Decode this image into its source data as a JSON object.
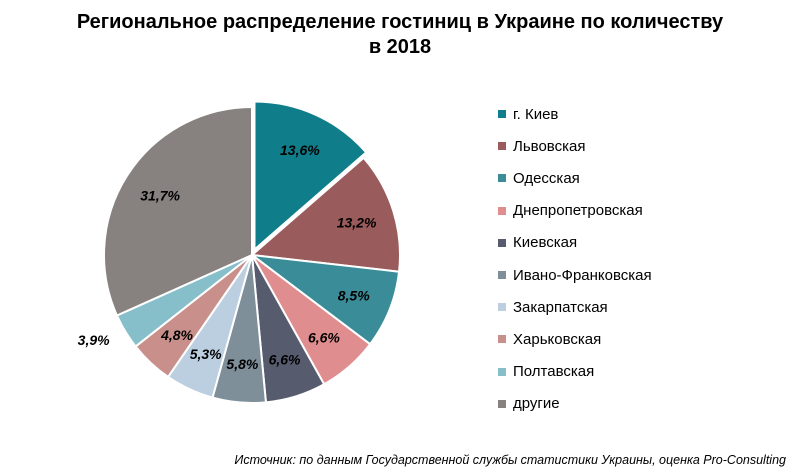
{
  "title_line1": "Региональное распределение гостиниц в Украине по количеству",
  "title_line2": "в 2018",
  "source": "Источник: по данным Государственной службы статистики Украины, оценка Pro-Consulting",
  "chart_data": {
    "type": "pie",
    "title": "Региональное распределение гостиниц в Украине по количеству в 2018",
    "categories": [
      "г. Киев",
      "Львовская",
      "Одесская",
      "Днепропетровская",
      "Киевская",
      "Ивано-Франковская",
      "Закарпатская",
      "Харьковская",
      "Полтавская",
      "другие"
    ],
    "values": [
      13.6,
      13.2,
      8.5,
      6.6,
      6.6,
      5.8,
      5.3,
      4.8,
      3.9,
      31.7
    ],
    "data_labels": [
      "13,6%",
      "13,2%",
      "8,5%",
      "6,6%",
      "6,6%",
      "5,8%",
      "5,3%",
      "4,8%",
      "3,9%",
      "31,7%"
    ],
    "colors": [
      "#0f7d8a",
      "#9a5b5c",
      "#3a8d98",
      "#df8d8e",
      "#575b6e",
      "#7f8f9a",
      "#bccfe0",
      "#c98f8a",
      "#86bfca",
      "#878180"
    ],
    "exploded": [
      true,
      false,
      false,
      false,
      false,
      false,
      false,
      false,
      false,
      false
    ],
    "legend_position": "right"
  }
}
